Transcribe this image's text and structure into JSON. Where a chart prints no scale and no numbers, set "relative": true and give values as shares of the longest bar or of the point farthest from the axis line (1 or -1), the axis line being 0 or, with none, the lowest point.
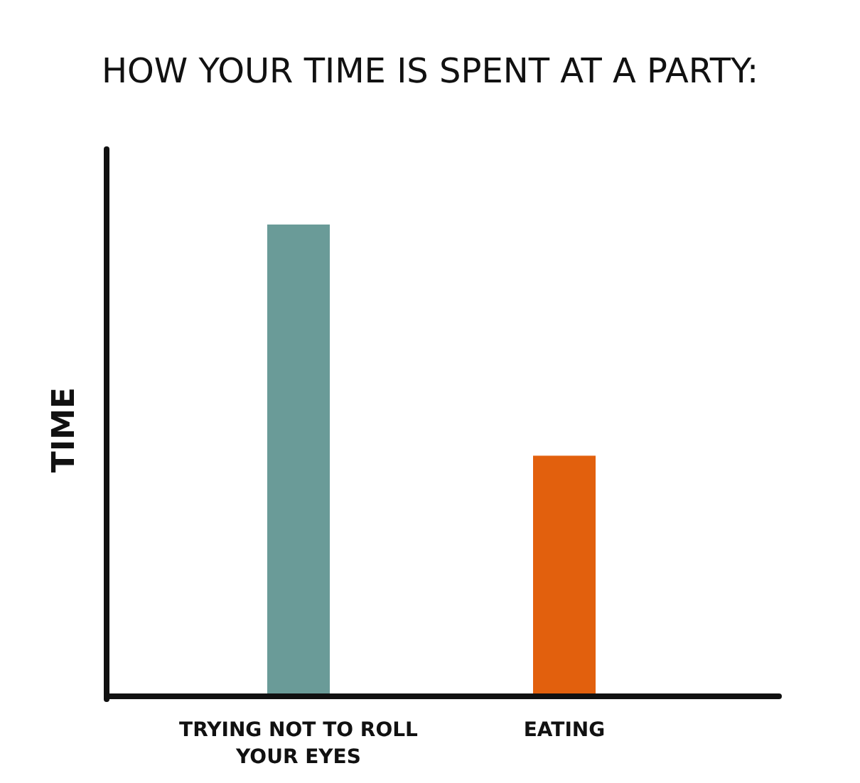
{
  "chart_data": {
    "type": "bar",
    "title": "HOW YOUR TIME IS SPENT AT A PARTY:",
    "ylabel": "TIME",
    "categories": [
      "TRYING NOT TO ROLL YOUR EYES",
      "EATING"
    ],
    "values": [
      1,
      0.51
    ],
    "colors": [
      "#6a9b98",
      "#e2600d"
    ],
    "relative": true
  }
}
